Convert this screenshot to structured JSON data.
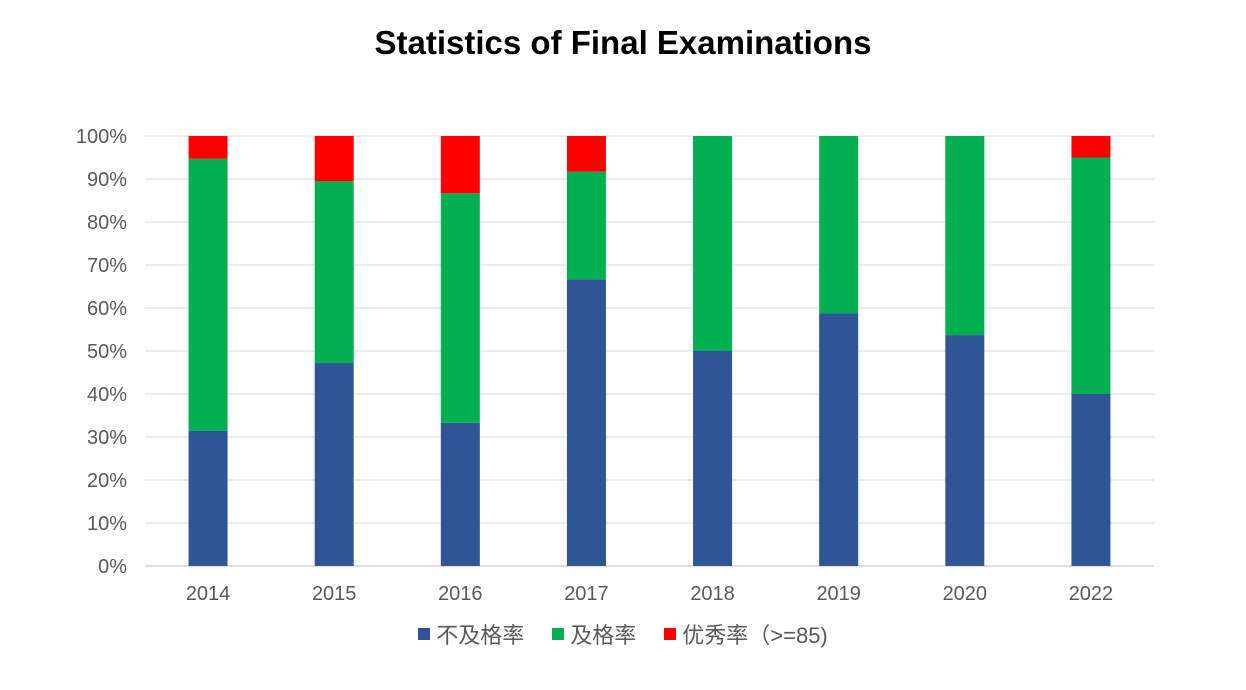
{
  "chart_data": {
    "type": "bar",
    "stacked": "percent",
    "title": "Statistics of Final Examinations",
    "xlabel": "",
    "ylabel": "",
    "ylim": [
      0,
      100
    ],
    "yticks": [
      "0%",
      "10%",
      "20%",
      "30%",
      "40%",
      "50%",
      "60%",
      "70%",
      "80%",
      "90%",
      "100%"
    ],
    "grid": true,
    "legend_position": "bottom",
    "categories": [
      "2014",
      "2015",
      "2016",
      "2017",
      "2018",
      "2019",
      "2020",
      "2022"
    ],
    "series": [
      {
        "name": "不及格率",
        "color": "#2F5597",
        "values": [
          31.4,
          47.2,
          33.3,
          66.7,
          50.0,
          58.8,
          53.7,
          40.0
        ]
      },
      {
        "name": "及格率",
        "color": "#00B050",
        "values": [
          63.3,
          42.3,
          53.4,
          25.0,
          50.0,
          41.2,
          46.3,
          55.0
        ]
      },
      {
        "name": "优秀率（>=85)",
        "color": "#FF0000",
        "values": [
          5.3,
          10.5,
          13.3,
          8.3,
          0,
          0,
          0,
          5.0
        ]
      }
    ]
  }
}
